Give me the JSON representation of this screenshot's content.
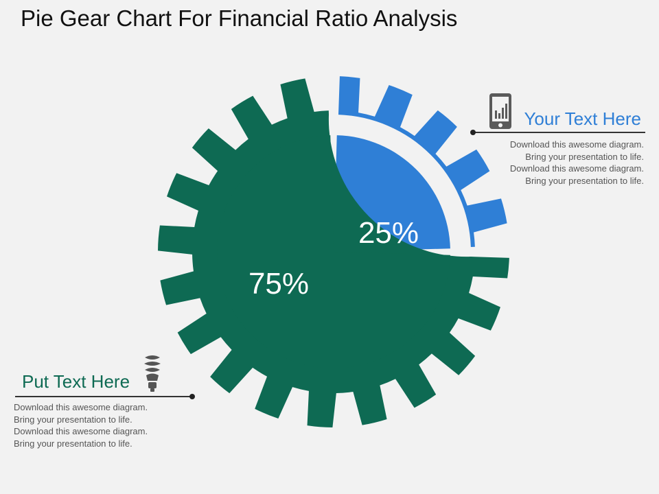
{
  "title": "Pie Gear Chart For Financial Ratio Analysis",
  "chart_data": {
    "type": "pie",
    "title": "Pie Gear Chart For Financial Ratio Analysis",
    "slices": [
      {
        "label": "25%",
        "value": 25,
        "color": "#2f7fd6"
      },
      {
        "label": "75%",
        "value": 75,
        "color": "#0e6a53"
      }
    ]
  },
  "callouts": {
    "right": {
      "heading": "Your Text Here",
      "heading_color": "#2f7fd6",
      "icon": "mobile-chart-icon",
      "lines": [
        "Download this awesome diagram.",
        "Bring your presentation to life.",
        "Download this awesome diagram.",
        "Bring your presentation to life."
      ]
    },
    "left": {
      "heading": "Put Text Here",
      "heading_color": "#0e6a53",
      "icon": "light-bulb-icon",
      "lines": [
        "Download this awesome diagram.",
        "Bring your presentation to life.",
        "Download this awesome diagram.",
        "Bring your presentation to life."
      ]
    }
  }
}
